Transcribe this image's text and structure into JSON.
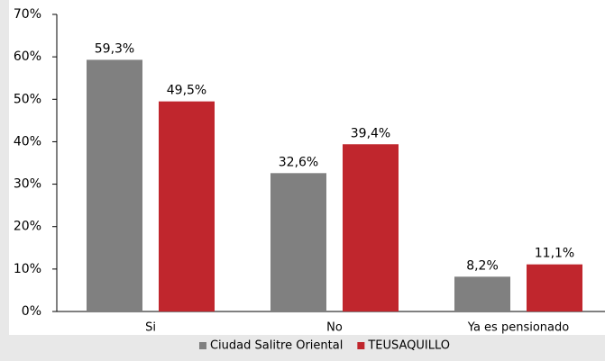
{
  "chart_data": {
    "type": "bar",
    "categories": [
      "Si",
      "No",
      "Ya es pensionado"
    ],
    "series": [
      {
        "name": "Ciudad Salitre Oriental",
        "color": "#808080",
        "values": [
          59.3,
          32.6,
          8.2
        ],
        "value_labels": [
          "59,3%",
          "32,6%",
          "8,2%"
        ]
      },
      {
        "name": "TEUSAQUILLO",
        "color": "#c0262d",
        "values": [
          49.5,
          39.4,
          11.1
        ],
        "value_labels": [
          "49,5%",
          "39,4%",
          "11,1%"
        ]
      }
    ],
    "ylim": [
      0,
      70
    ],
    "yticks": [
      {
        "value": 0,
        "label": "0%"
      },
      {
        "value": 10,
        "label": "10%"
      },
      {
        "value": 20,
        "label": "20%"
      },
      {
        "value": 30,
        "label": "30%"
      },
      {
        "value": 40,
        "label": "40%"
      },
      {
        "value": 50,
        "label": "50%"
      },
      {
        "value": 60,
        "label": "60%"
      },
      {
        "value": 70,
        "label": "70%"
      }
    ],
    "grid": false,
    "legend": "bottom"
  }
}
